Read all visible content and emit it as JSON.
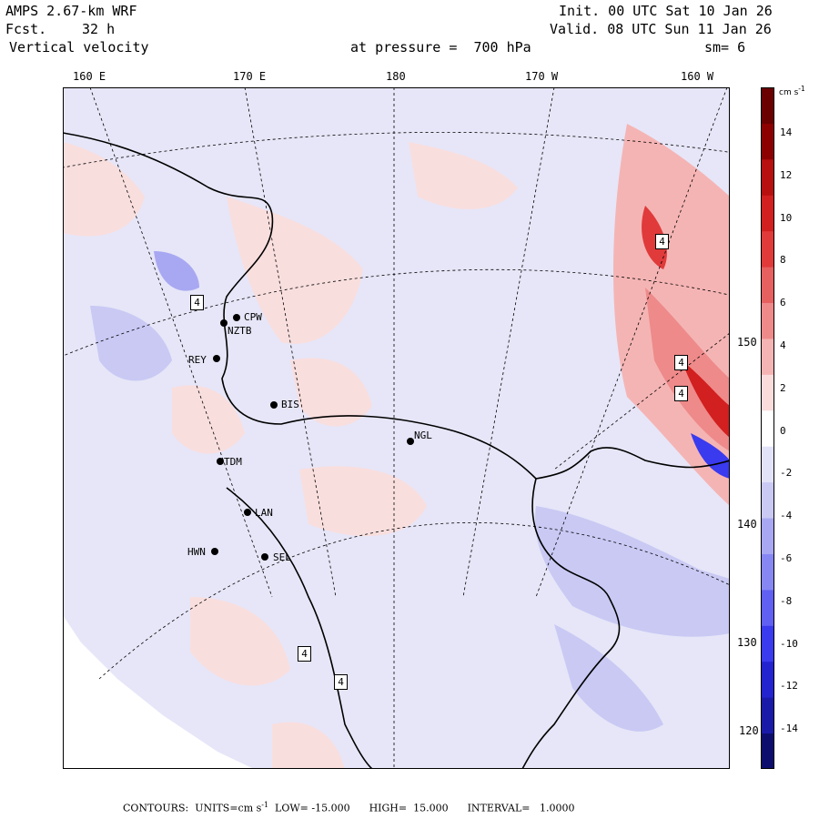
{
  "header": {
    "model": "AMPS 2.67-km WRF",
    "forecast_label": "Fcst.",
    "forecast_value": "32 h",
    "field": "Vertical velocity",
    "init": "Init. 00 UTC Sat 10 Jan 26",
    "valid": "Valid. 08 UTC Sun 11 Jan 26",
    "level": "at pressure =  700 hPa",
    "smoothing": "sm= 6"
  },
  "longitude_labels": [
    "160 E",
    "170 E",
    "180",
    "170 W",
    "160 W"
  ],
  "latitude_labels": [
    "150 W",
    "140 W",
    "130 W",
    "120 W"
  ],
  "stations": [
    "CPW",
    "NZTB",
    "REY",
    "BIS",
    "NGL",
    "TDM",
    "LAN",
    "HWN",
    "SEL"
  ],
  "contour_labels": [
    "4",
    "4",
    "4",
    "4",
    "4",
    "4"
  ],
  "colorbar": {
    "units_label": "cm s",
    "units_exp": "-1",
    "ticks": [
      "14",
      "12",
      "10",
      "8",
      "6",
      "4",
      "2",
      "0",
      "-2",
      "-4",
      "-6",
      "-8",
      "-10",
      "-12",
      "-14"
    ],
    "colors": [
      "#0d0d6e",
      "#1a1aa8",
      "#2323d0",
      "#3a3aef",
      "#6060f2",
      "#8787f4",
      "#a8a8f2",
      "#c9c9f4",
      "#e2e2f9",
      "#ffffff",
      "#fbdcdc",
      "#f5b4b4",
      "#ee8a8a",
      "#e66060",
      "#e03a3a",
      "#d21f1f",
      "#b80f0f",
      "#8c0000",
      "#6a0000"
    ]
  },
  "footer": {
    "text": "CONTOURS:  UNITS=cm s",
    "exp": "-1",
    "rest": "  LOW= -15.000      HIGH=  15.000      INTERVAL=   1.0000"
  }
}
